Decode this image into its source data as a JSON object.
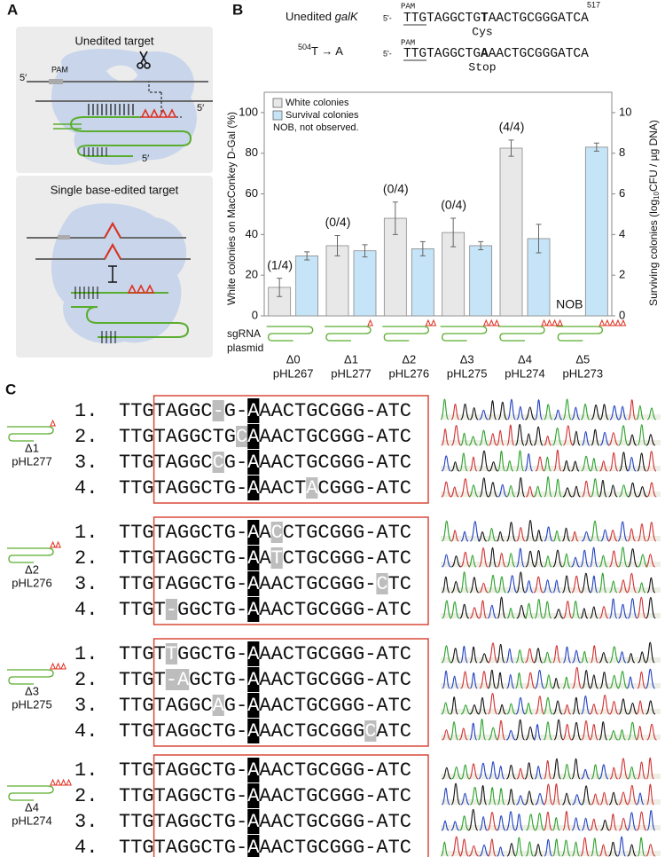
{
  "panel_a": {
    "label": "A",
    "top_title": "Unedited target",
    "pam": "PAM",
    "top_five_primes": [
      "5′",
      "5′",
      "5′"
    ],
    "bottom_title": "Single base-edited target"
  },
  "panel_b": {
    "label": "B",
    "unedited": {
      "prefix": "Unedited ",
      "gene": "galK",
      "five_prime": "5'-",
      "pam": "PAM",
      "sequence_pre": "TTGTAGGCTG",
      "base": "T",
      "sequence_post": "AACTGCGGGATCA",
      "end_position": "517",
      "codon": "Cys"
    },
    "mutant": {
      "position": "504",
      "change": "T → A",
      "five_prime": "5'-",
      "pam": "PAM",
      "sequence_pre": "TTGTAGGCTG",
      "base": "A",
      "sequence_post": "AACTGCGGGATCA",
      "codon": "Stop"
    }
  },
  "chart_data": {
    "type": "bar",
    "y_label": "White colonies on MacConkey D-Gal (%)",
    "y2_label": [
      "Surviving colonies (log",
      "10",
      "CFU / µg DNA)"
    ],
    "category_axis_label": [
      "sgRNA",
      "plasmid"
    ],
    "categories": [
      "Δ0",
      "Δ1",
      "Δ2",
      "Δ3",
      "Δ4",
      "Δ5"
    ],
    "plasmids": [
      "pHL267",
      "pHL277",
      "pHL276",
      "pHL275",
      "pHL274",
      "pHL273"
    ],
    "series": [
      {
        "name": "White colonies",
        "color": "#e8e8e8",
        "values": [
          14,
          34.5,
          48,
          41,
          82.5,
          null
        ],
        "errors": [
          4.5,
          5,
          8,
          7,
          4,
          null
        ]
      },
      {
        "name": "Survival colonies",
        "color": "#c6e4f7",
        "axis": "y2",
        "values": [
          2.95,
          3.2,
          3.3,
          3.45,
          3.8,
          8.3
        ],
        "errors": [
          0.2,
          0.3,
          0.35,
          0.2,
          0.7,
          0.2
        ]
      }
    ],
    "annotations": [
      "(1/4)",
      "(0/4)",
      "(0/4)",
      "(0/4)",
      "(4/4)",
      "NOB"
    ],
    "legend_note": "NOB, not observed.",
    "legend": "upper left",
    "ylim": [
      0,
      110
    ],
    "yticks": [
      0,
      20,
      40,
      60,
      80,
      100
    ],
    "y2lim": [
      0,
      11
    ],
    "y2ticks": [
      0,
      2,
      4,
      6,
      8,
      10
    ]
  },
  "panel_c": {
    "label": "C",
    "groups": [
      {
        "delta": "Δ1",
        "plasmid": "pHL277",
        "rows": [
          {
            "number": "1.",
            "sequence": "TTGTAGGC-G-AAACTGCGGG-ATC"
          },
          {
            "number": "2.",
            "sequence": "TTGTAGGCTGCAAACTGCGGG-ATC"
          },
          {
            "number": "3.",
            "sequence": "TTGTAGGCCG-AAACTGCGGG-ATC"
          },
          {
            "number": "4.",
            "sequence": "TTGTAGGCTG-AAACTACGGG-ATC"
          }
        ]
      },
      {
        "delta": "Δ2",
        "plasmid": "pHL276",
        "rows": [
          {
            "number": "1.",
            "sequence": "TTGTAGGCTG-AACCTGCGGG-ATC"
          },
          {
            "number": "2.",
            "sequence": "TTGTAGGCTG-AATCTGCGGG-ATC"
          },
          {
            "number": "3.",
            "sequence": "TTGTAGGCTG-AAACTGCGGG-CTC"
          },
          {
            "number": "4.",
            "sequence": "TTGT-GGCTG-AAACTGCGGG-ATC"
          }
        ]
      },
      {
        "delta": "Δ3",
        "plasmid": "pHL275",
        "rows": [
          {
            "number": "1.",
            "sequence": "TTGTTGGCTG-AAACTGCGGG-ATC"
          },
          {
            "number": "2.",
            "sequence": "TTGT-AGCTG-AAACTGCGGG-ATC"
          },
          {
            "number": "3.",
            "sequence": "TTGTAGGCAG-AAACTGCGGG-ATC"
          },
          {
            "number": "4.",
            "sequence": "TTGTAGGCTG-AAACTGCGGGCATC"
          }
        ]
      },
      {
        "delta": "Δ4",
        "plasmid": "pHL274",
        "rows": [
          {
            "number": "1.",
            "sequence": "TTGTAGGCTG-AAACTGCGGG-ATC"
          },
          {
            "number": "2.",
            "sequence": "TTGTAGGCTG-AAACTGCGGG-ATC"
          },
          {
            "number": "3.",
            "sequence": "TTGTAGGCTG-AAACTGCGGG-ATC"
          },
          {
            "number": "4.",
            "sequence": "TTGTAGGCTG-AAACTGCGGG-ATC"
          }
        ]
      }
    ]
  }
}
